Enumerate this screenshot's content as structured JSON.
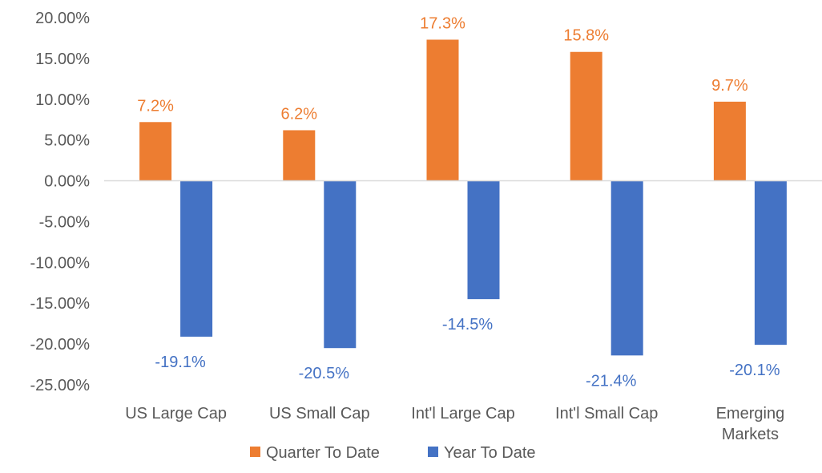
{
  "chart_data": {
    "type": "bar",
    "title": "",
    "xlabel": "",
    "ylabel": "",
    "ylim": [
      -25,
      20
    ],
    "y_ticks": [
      {
        "value": 20,
        "label": "20.00%"
      },
      {
        "value": 15,
        "label": "15.00%"
      },
      {
        "value": 10,
        "label": "10.00%"
      },
      {
        "value": 5,
        "label": "5.00%"
      },
      {
        "value": 0,
        "label": "0.00%"
      },
      {
        "value": -5,
        "label": "-5.00%"
      },
      {
        "value": -10,
        "label": "-10.00%"
      },
      {
        "value": -15,
        "label": "-15.00%"
      },
      {
        "value": -20,
        "label": "-20.00%"
      },
      {
        "value": -25,
        "label": "-25.00%"
      }
    ],
    "categories": [
      [
        "US Large Cap"
      ],
      [
        "US Small Cap"
      ],
      [
        "Int'l Large Cap"
      ],
      [
        "Int'l Small Cap"
      ],
      [
        "Emerging",
        "Markets"
      ]
    ],
    "series": [
      {
        "name": "Quarter To Date",
        "color": "#ED7D31",
        "values": [
          7.2,
          6.2,
          17.3,
          15.8,
          9.7
        ],
        "labels": [
          "7.2%",
          "6.2%",
          "17.3%",
          "15.8%",
          "9.7%"
        ]
      },
      {
        "name": "Year To Date",
        "color": "#4472C4",
        "values": [
          -19.1,
          -20.5,
          -14.5,
          -21.4,
          -20.1
        ],
        "labels": [
          "-19.1%",
          "-20.5%",
          "-14.5%",
          "-21.4%",
          "-20.1%"
        ]
      }
    ],
    "legend": "bottom",
    "grid": false
  }
}
